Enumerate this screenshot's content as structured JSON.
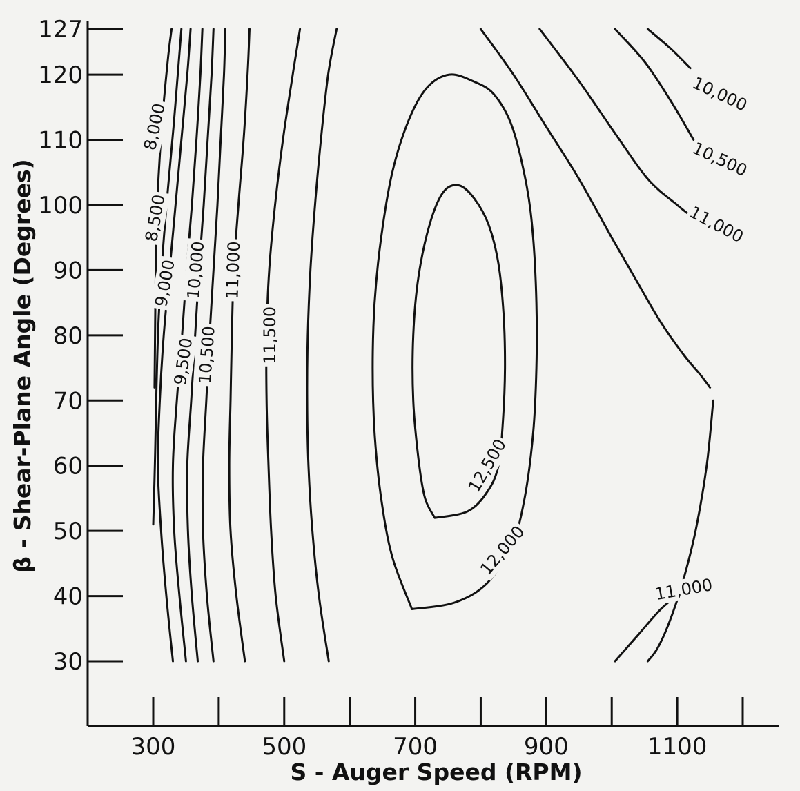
{
  "chart_data": {
    "type": "contour",
    "xlabel": "S - Auger Speed (RPM)",
    "ylabel": "β - Shear-Plane Angle (Degrees)",
    "xlim": [
      230,
      1200
    ],
    "ylim": [
      25,
      127
    ],
    "xticks": [
      300,
      400,
      500,
      600,
      700,
      800,
      900,
      1000,
      1100,
      1200
    ],
    "xtick_labels": [
      "300",
      "500",
      "700",
      "900",
      "1100"
    ],
    "xtick_label_values": [
      300,
      500,
      700,
      900,
      1100
    ],
    "yticks": [
      127,
      120,
      110,
      100,
      90,
      80,
      70,
      60,
      50,
      40,
      30
    ],
    "ytick_labels": [
      "127",
      "120",
      "110",
      "100",
      "90",
      "80",
      "70",
      "60",
      "50",
      "40",
      "30"
    ],
    "contours": [
      {
        "level": "8,000",
        "label_at": [
          302,
          112
        ],
        "label_rot": -78,
        "points": [
          [
            302,
            72
          ],
          [
            303,
            82
          ],
          [
            304,
            92
          ],
          [
            307,
            102
          ],
          [
            313,
            112
          ],
          [
            322,
            122
          ],
          [
            328,
            127
          ]
        ]
      },
      {
        "level": "8,500",
        "label_at": [
          303,
          98
        ],
        "label_rot": -80,
        "points": [
          [
            300,
            51
          ],
          [
            303,
            62
          ],
          [
            305,
            72
          ],
          [
            308,
            82
          ],
          [
            314,
            92
          ],
          [
            322,
            102
          ],
          [
            331,
            112
          ],
          [
            339,
            122
          ],
          [
            343,
            127
          ]
        ]
      },
      {
        "level": "9,000",
        "label_at": [
          318,
          88
        ],
        "label_rot": -80,
        "points": [
          [
            330,
            30
          ],
          [
            320,
            40
          ],
          [
            312,
            50
          ],
          [
            307,
            60
          ],
          [
            310,
            70
          ],
          [
            316,
            80
          ],
          [
            325,
            90
          ],
          [
            334,
            100
          ],
          [
            343,
            110
          ],
          [
            352,
            120
          ],
          [
            357,
            127
          ]
        ]
      },
      {
        "level": "9,500",
        "label_at": [
          346,
          76
        ],
        "label_rot": -82,
        "points": [
          [
            350,
            30
          ],
          [
            340,
            40
          ],
          [
            332,
            50
          ],
          [
            330,
            60
          ],
          [
            336,
            70
          ],
          [
            344,
            80
          ],
          [
            351,
            90
          ],
          [
            359,
            100
          ],
          [
            366,
            110
          ],
          [
            372,
            120
          ],
          [
            375,
            127
          ]
        ]
      },
      {
        "level": "10,000",
        "label_at": [
          365,
          90
        ],
        "label_rot": -85,
        "points": [
          [
            368,
            30
          ],
          [
            359,
            40
          ],
          [
            353,
            50
          ],
          [
            352,
            60
          ],
          [
            358,
            70
          ],
          [
            364,
            80
          ],
          [
            370,
            90
          ],
          [
            377,
            100
          ],
          [
            383,
            110
          ],
          [
            389,
            120
          ],
          [
            392,
            127
          ]
        ]
      },
      {
        "level": "10,500",
        "label_at": [
          382,
          77
        ],
        "label_rot": -86,
        "points": [
          [
            392,
            30
          ],
          [
            382,
            40
          ],
          [
            376,
            50
          ],
          [
            376,
            60
          ],
          [
            381,
            70
          ],
          [
            386,
            80
          ],
          [
            392,
            90
          ],
          [
            398,
            100
          ],
          [
            403,
            110
          ],
          [
            408,
            120
          ],
          [
            410,
            127
          ]
        ]
      },
      {
        "level": "11,000",
        "label_at": [
          422,
          90
        ],
        "label_rot": -88,
        "points": [
          [
            440,
            30
          ],
          [
            427,
            40
          ],
          [
            418,
            50
          ],
          [
            416,
            60
          ],
          [
            418,
            70
          ],
          [
            420,
            80
          ],
          [
            423,
            90
          ],
          [
            430,
            100
          ],
          [
            438,
            110
          ],
          [
            444,
            120
          ],
          [
            447,
            127
          ]
        ]
      },
      {
        "level": "11,500",
        "label_at": [
          478,
          80
        ],
        "label_rot": -90,
        "points": [
          [
            500,
            30
          ],
          [
            487,
            40
          ],
          [
            480,
            50
          ],
          [
            476,
            60
          ],
          [
            473,
            70
          ],
          [
            473,
            80
          ],
          [
            477,
            90
          ],
          [
            486,
            100
          ],
          [
            498,
            110
          ],
          [
            513,
            120
          ],
          [
            524,
            127
          ]
        ]
      },
      {
        "level": "",
        "label_at": null,
        "label_rot": 0,
        "points": [
          [
            568,
            30
          ],
          [
            553,
            40
          ],
          [
            543,
            50
          ],
          [
            537,
            60
          ],
          [
            535,
            70
          ],
          [
            536,
            80
          ],
          [
            540,
            90
          ],
          [
            547,
            100
          ],
          [
            556,
            110
          ],
          [
            567,
            120
          ],
          [
            580,
            127
          ]
        ]
      },
      {
        "level": "12,000",
        "label_at": [
          833,
          47
        ],
        "label_rot": -50,
        "points": [
          [
            695,
            38
          ],
          [
            760,
            39
          ],
          [
            810,
            42
          ],
          [
            848,
            48
          ],
          [
            867,
            55
          ],
          [
            880,
            65
          ],
          [
            885,
            75
          ],
          [
            885,
            85
          ],
          [
            880,
            95
          ],
          [
            870,
            103
          ],
          [
            848,
            112
          ],
          [
            820,
            117
          ],
          [
            788,
            119
          ],
          [
            752,
            120
          ],
          [
            718,
            118
          ],
          [
            690,
            113
          ],
          [
            665,
            105
          ],
          [
            648,
            95
          ],
          [
            638,
            85
          ],
          [
            635,
            75
          ],
          [
            638,
            65
          ],
          [
            648,
            55
          ],
          [
            665,
            46
          ],
          [
            695,
            38
          ]
        ]
      },
      {
        "level": "12,500",
        "label_at": [
          810,
          60
        ],
        "label_rot": -60,
        "points": [
          [
            730,
            52
          ],
          [
            780,
            53
          ],
          [
            810,
            56
          ],
          [
            827,
            60
          ],
          [
            834,
            67
          ],
          [
            837,
            75
          ],
          [
            835,
            83
          ],
          [
            827,
            91
          ],
          [
            812,
            97
          ],
          [
            790,
            101
          ],
          [
            767,
            103
          ],
          [
            743,
            102
          ],
          [
            722,
            97
          ],
          [
            705,
            89
          ],
          [
            697,
            80
          ],
          [
            697,
            70
          ],
          [
            705,
            61
          ],
          [
            715,
            55
          ],
          [
            730,
            52
          ]
        ]
      },
      {
        "level": "11,000",
        "label_at": [
          1110,
          41
        ],
        "label_rot": -10,
        "points": [
          [
            1005,
            30
          ],
          [
            1040,
            34
          ],
          [
            1075,
            38
          ],
          [
            1100,
            40
          ],
          [
            1115,
            40.5
          ]
        ]
      },
      {
        "level": "",
        "label_at": null,
        "label_rot": 0,
        "points": [
          [
            1155,
            70
          ],
          [
            1145,
            60
          ],
          [
            1128,
            50
          ],
          [
            1108,
            42
          ],
          [
            1088,
            36
          ],
          [
            1070,
            32
          ],
          [
            1055,
            30
          ]
        ]
      },
      {
        "level": "",
        "label_at": null,
        "label_rot": 0,
        "points": [
          [
            800,
            127
          ],
          [
            850,
            120
          ],
          [
            900,
            112
          ],
          [
            950,
            104
          ],
          [
            1000,
            95
          ],
          [
            1040,
            88
          ],
          [
            1075,
            82
          ],
          [
            1110,
            77
          ],
          [
            1135,
            74
          ],
          [
            1150,
            72
          ]
        ]
      },
      {
        "level": "11,000",
        "label_at": [
          1160,
          97
        ],
        "label_rot": 28,
        "points": [
          [
            890,
            127
          ],
          [
            950,
            119
          ],
          [
            1005,
            111
          ],
          [
            1055,
            104
          ],
          [
            1100,
            100
          ],
          [
            1125,
            98
          ]
        ]
      },
      {
        "level": "10,500",
        "label_at": [
          1165,
          107
        ],
        "label_rot": 25,
        "points": [
          [
            1005,
            127
          ],
          [
            1050,
            122
          ],
          [
            1090,
            116
          ],
          [
            1125,
            110
          ]
        ]
      },
      {
        "level": "10,000",
        "label_at": [
          1165,
          117
        ],
        "label_rot": 25,
        "points": [
          [
            1055,
            127
          ],
          [
            1090,
            124
          ],
          [
            1120,
            121
          ]
        ]
      }
    ]
  }
}
